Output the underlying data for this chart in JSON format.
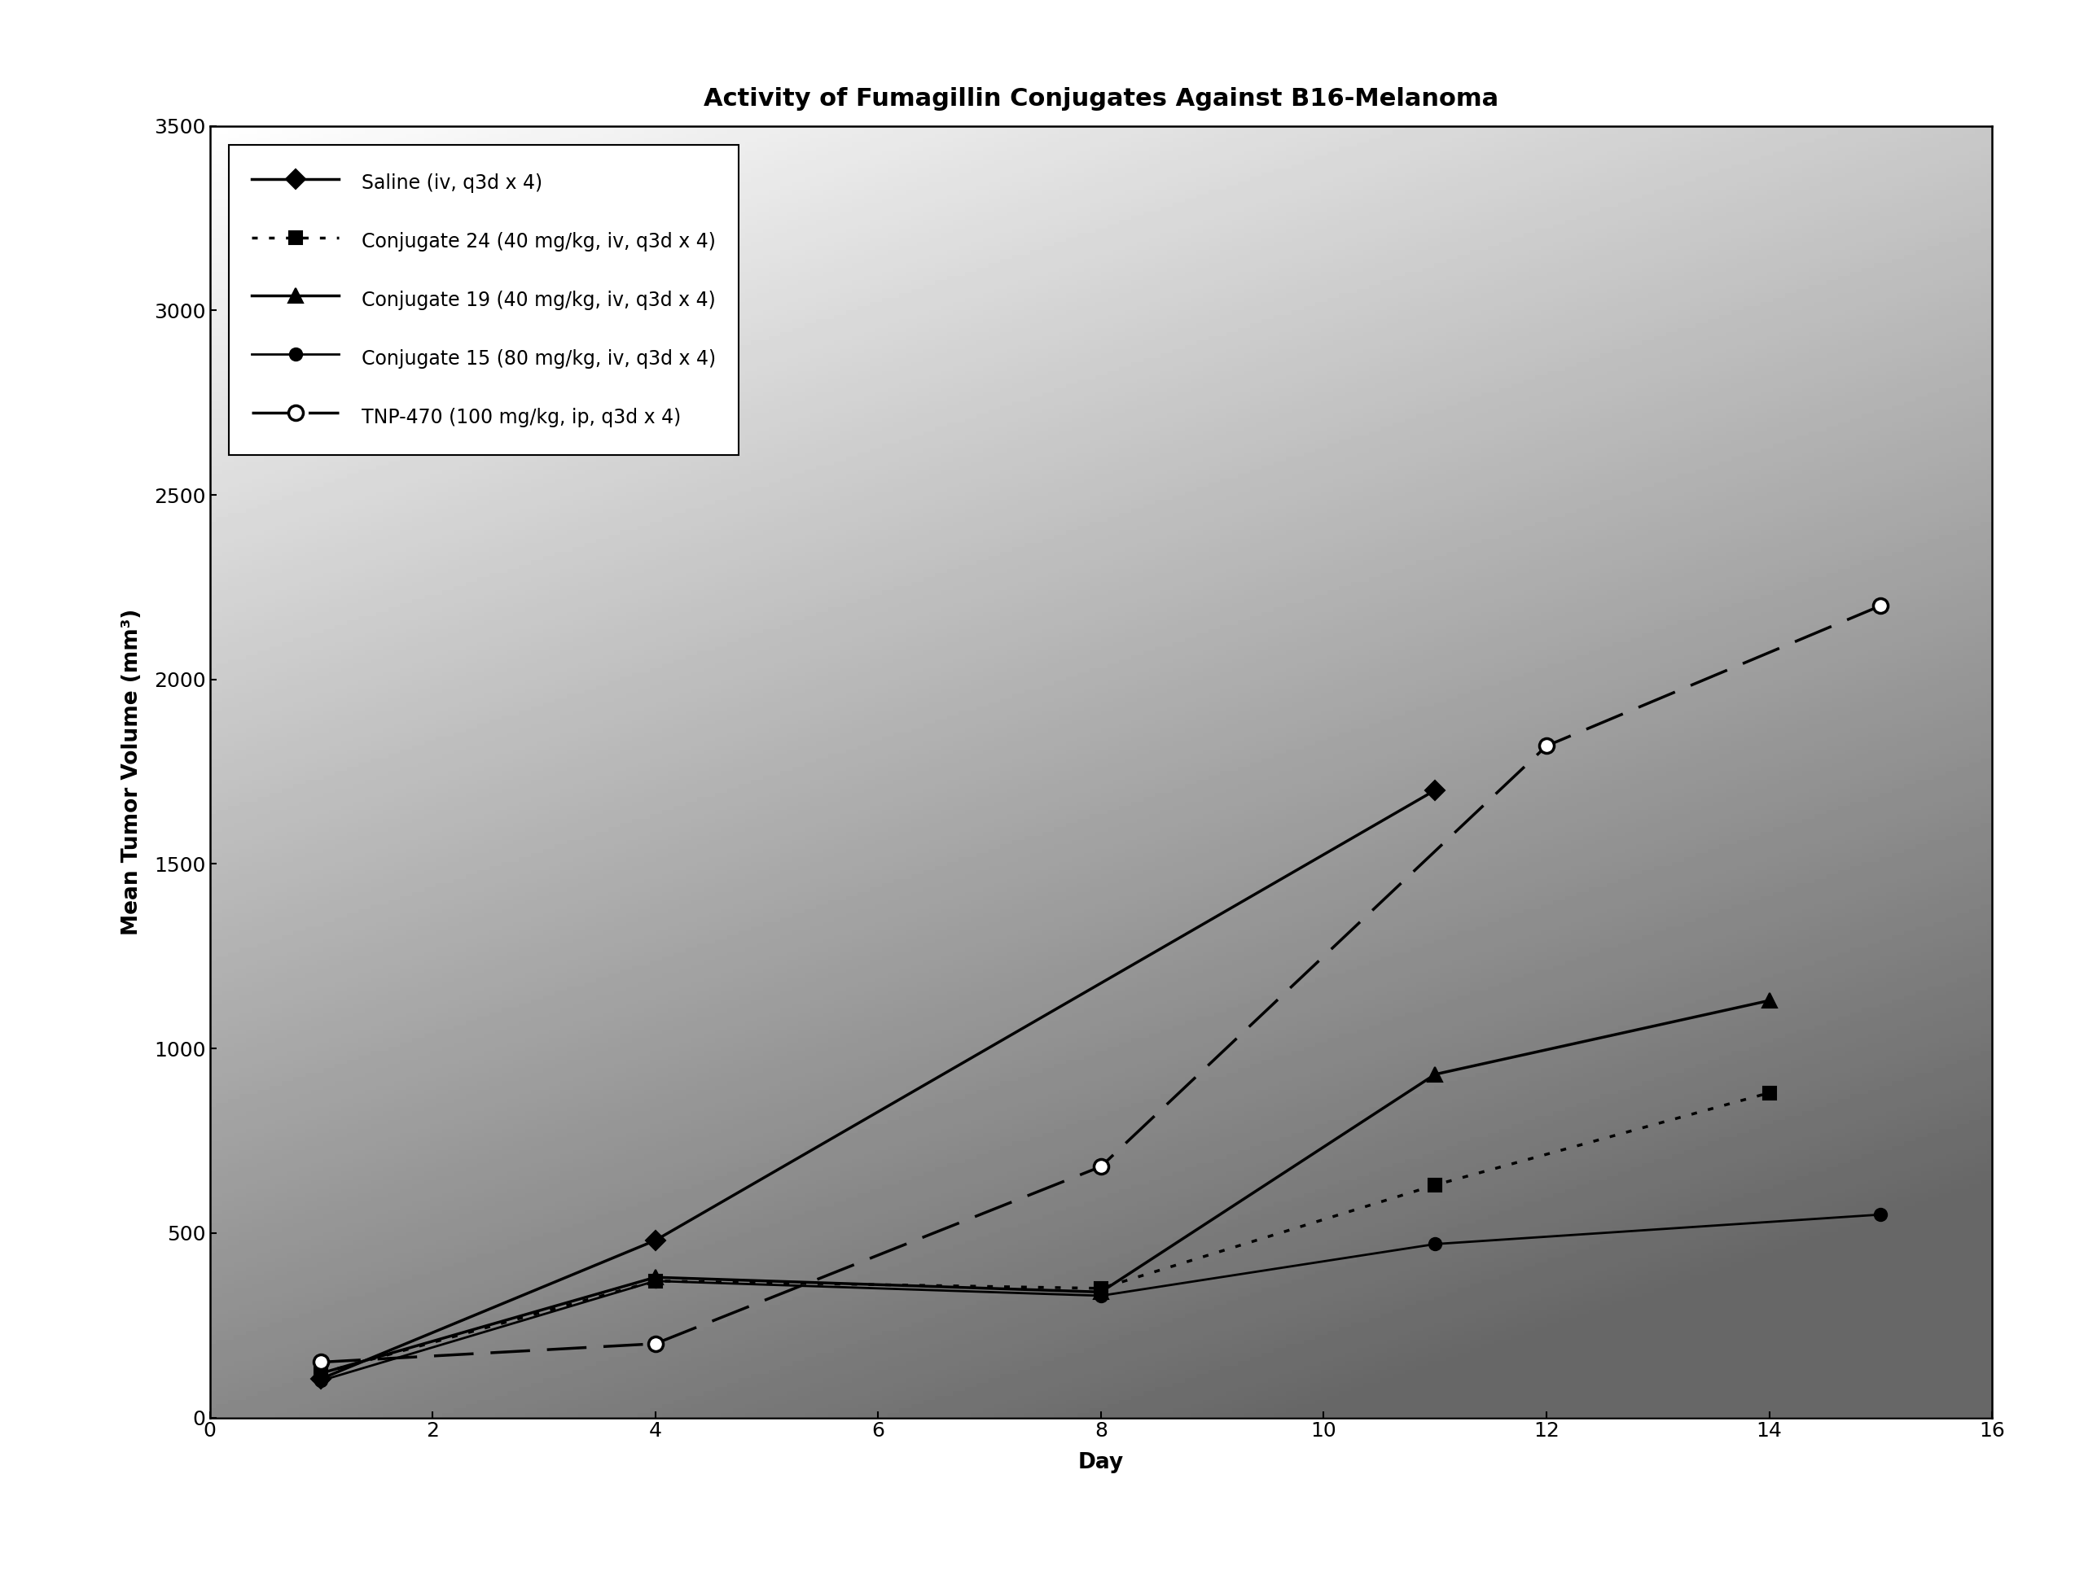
{
  "title": "Activity of Fumagillin Conjugates Against B16-Melanoma",
  "xlabel": "Day",
  "ylabel": "Mean Tumor Volume (mm³)",
  "xlim": [
    0,
    16
  ],
  "ylim": [
    0,
    3500
  ],
  "xticks": [
    0,
    2,
    4,
    6,
    8,
    10,
    12,
    14,
    16
  ],
  "yticks": [
    0,
    500,
    1000,
    1500,
    2000,
    2500,
    3000,
    3500
  ],
  "series": [
    {
      "label": "Saline (iv, q3d x 4)",
      "x": [
        1,
        4,
        11
      ],
      "y": [
        105,
        480,
        1700
      ],
      "linestyle": "-",
      "dashes": null,
      "marker": "D",
      "markersize": 12,
      "markerfacecolor": "black",
      "markeredgecolor": "black",
      "markeredgewidth": 1.5,
      "linewidth": 2.5
    },
    {
      "label": "Conjugate 24 (40 mg/kg, iv, q3d x 4)",
      "x": [
        1,
        4,
        8,
        11,
        14
      ],
      "y": [
        120,
        370,
        350,
        630,
        880
      ],
      "linestyle": "dotted",
      "dashes": [
        2,
        4
      ],
      "marker": "s",
      "markersize": 12,
      "markerfacecolor": "black",
      "markeredgecolor": "black",
      "markeredgewidth": 1.5,
      "linewidth": 2.5
    },
    {
      "label": "Conjugate 19 (40 mg/kg, iv, q3d x 4)",
      "x": [
        1,
        4,
        8,
        11,
        14
      ],
      "y": [
        120,
        380,
        340,
        930,
        1130
      ],
      "linestyle": "-",
      "dashes": null,
      "marker": "^",
      "markersize": 13,
      "markerfacecolor": "black",
      "markeredgecolor": "black",
      "markeredgewidth": 1.5,
      "linewidth": 2.5
    },
    {
      "label": "Conjugate 15 (80 mg/kg, iv, q3d x 4)",
      "x": [
        1,
        4,
        8,
        11,
        15
      ],
      "y": [
        100,
        370,
        330,
        470,
        550
      ],
      "linestyle": "-",
      "dashes": null,
      "marker": "o",
      "markersize": 11,
      "markerfacecolor": "black",
      "markeredgecolor": "black",
      "markeredgewidth": 1.5,
      "linewidth": 2.0
    },
    {
      "label": "TNP-470 (100 mg/kg, ip, q3d x 4)",
      "x": [
        1,
        4,
        8,
        12,
        15
      ],
      "y": [
        150,
        200,
        680,
        1820,
        2200
      ],
      "linestyle": "--",
      "dashes": [
        14,
        6
      ],
      "marker": "o",
      "markersize": 13,
      "markerfacecolor": "white",
      "markeredgecolor": "black",
      "markeredgewidth": 2.5,
      "linewidth": 2.5
    }
  ],
  "title_fontsize": 22,
  "label_fontsize": 19,
  "tick_fontsize": 18,
  "legend_fontsize": 17,
  "gradient_alpha": 0.85
}
